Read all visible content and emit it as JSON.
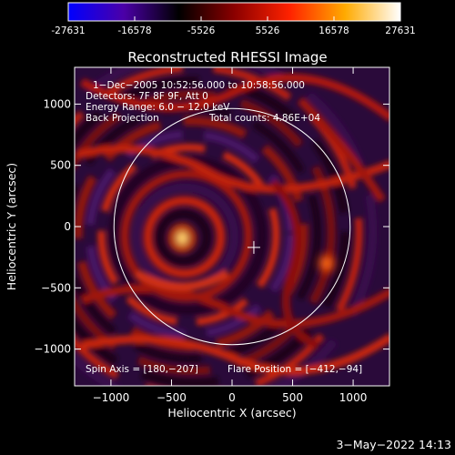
{
  "colorbar": {
    "min": -27631,
    "max": 27631,
    "ticks": [
      -27631,
      -16578,
      -5526,
      5526,
      16578,
      27631
    ],
    "tick_labels": [
      "-27631",
      "-16578",
      "-5526",
      "5526",
      "16578",
      "27631"
    ],
    "colors": [
      "#0000ff",
      "#4b00a8",
      "#000000",
      "#8b0000",
      "#ff2200",
      "#ffaa00",
      "#ffffff"
    ]
  },
  "chart_data": {
    "type": "heatmap",
    "title": "Reconstructed RHESSI Image",
    "xlabel": "Heliocentric X (arcsec)",
    "ylabel": "Heliocentric Y (arcsec)",
    "xlim": [
      -1300,
      1300
    ],
    "ylim": [
      -1300,
      1300
    ],
    "xticks": [
      -1000,
      -500,
      0,
      500,
      1000
    ],
    "yticks": [
      -1000,
      -500,
      0,
      500,
      1000
    ],
    "xtick_labels": [
      "−1000",
      "−500",
      "0",
      "500",
      "1000"
    ],
    "ytick_labels": [
      "−1000",
      "−500",
      "0",
      "500",
      "1000"
    ],
    "solar_limb": {
      "center": [
        0,
        0
      ],
      "radius": 975
    },
    "crosshair": {
      "x": 180,
      "y": -170
    },
    "hotspots": [
      {
        "x": -412,
        "y": -94,
        "peak": 27631
      },
      {
        "x": 780,
        "y": -300,
        "peak": 14000
      }
    ],
    "annotations": {
      "time_range": "1−Dec−2005 10:52:56.000 to 10:58:56.000",
      "detectors": "Detectors: 7F 8F 9F, Att 0",
      "energy_range": "Energy Range: 6.0 − 12.0 keV",
      "method": "Back Projection",
      "total_counts": "Total counts: 4.86E+04",
      "spin_axis": "Spin Axis = [180,−207]",
      "flare_position": "Flare Position = [−412,−94]"
    }
  },
  "footer": {
    "timestamp": "3−May−2022 14:13"
  }
}
